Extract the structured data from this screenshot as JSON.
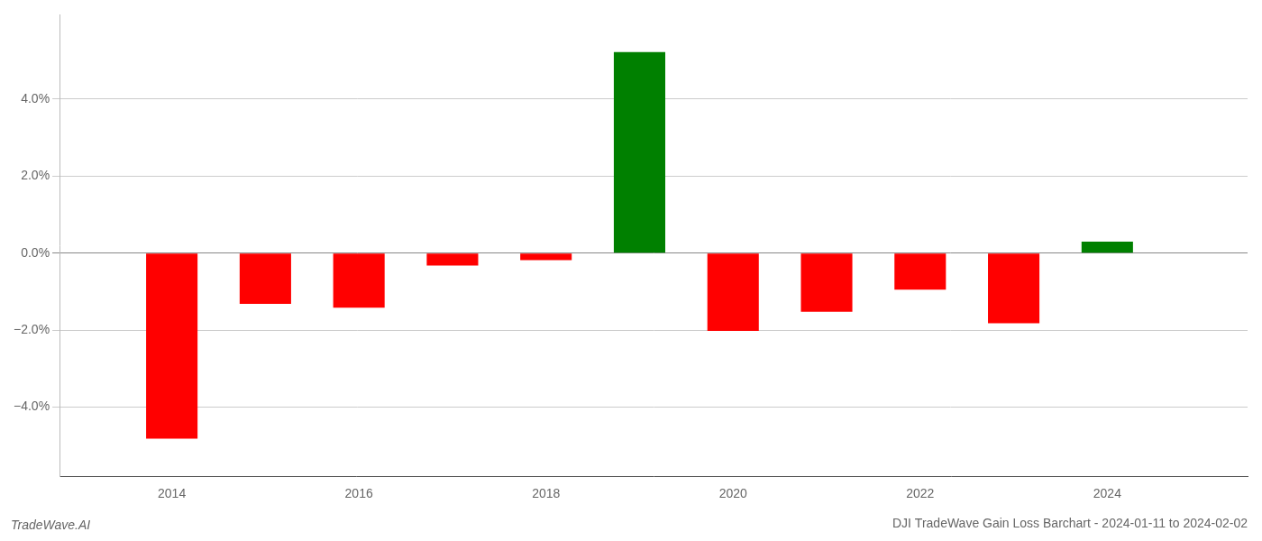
{
  "chart_data": {
    "type": "bar",
    "title": "DJI TradeWave Gain Loss Barchart - 2024-01-11 to 2024-02-02",
    "annotation": "TradeWave.AI",
    "x": [
      2014,
      2015,
      2016,
      2017,
      2018,
      2019,
      2020,
      2021,
      2022,
      2023,
      2024
    ],
    "values": [
      -4.82,
      -1.32,
      -1.42,
      -0.32,
      -0.18,
      5.22,
      -2.02,
      -1.52,
      -0.95,
      -1.82,
      0.3
    ],
    "colors": [
      "#ff0000",
      "#ff0000",
      "#ff0000",
      "#ff0000",
      "#ff0000",
      "#008000",
      "#ff0000",
      "#ff0000",
      "#ff0000",
      "#ff0000",
      "#008000"
    ],
    "xlim": [
      2012.8,
      2025.5
    ],
    "xticks": [
      2014,
      2016,
      2018,
      2020,
      2022,
      2024
    ],
    "ylim": [
      -5.8,
      6.2
    ],
    "yticks": [
      {
        "value": -4.0,
        "label": "−4.0%"
      },
      {
        "value": -2.0,
        "label": "−2.0%"
      },
      {
        "value": 0.0,
        "label": "0.0%"
      },
      {
        "value": 2.0,
        "label": "2.0%"
      },
      {
        "value": 4.0,
        "label": "4.0%"
      }
    ],
    "grid": "y"
  }
}
